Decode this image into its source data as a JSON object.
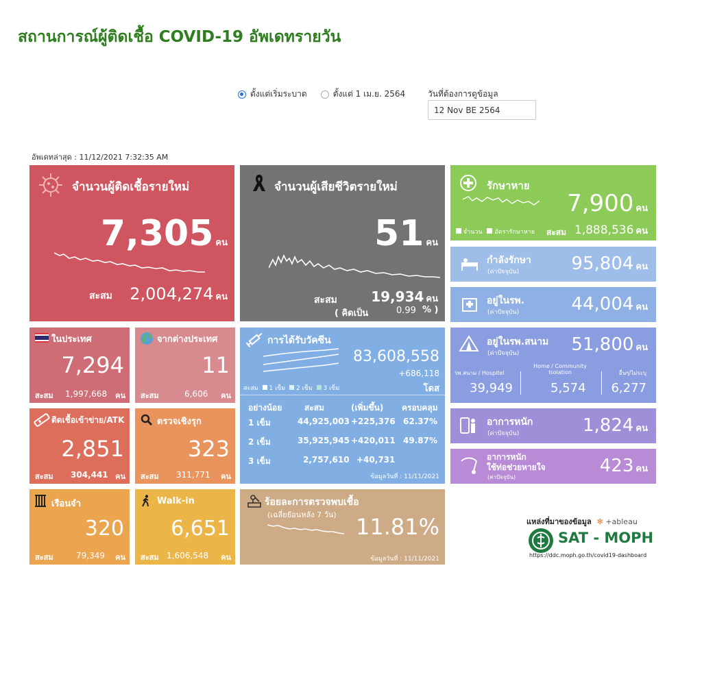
{
  "page_title": "สถานการณ์ผู้ติดเชื้อ COVID-19 อัพเดทรายวัน",
  "filters": {
    "option1": "ตั้งแต่เริ่มระบาด",
    "option2": "ตั้งแต่ 1 เม.ย. 2564",
    "date_label": "วันที่ต้องการดูข้อมูล",
    "date_value": "12 Nov BE 2564"
  },
  "updated": "อัพเดทล่าสุด : 11/12/2021 7:32:35 AM",
  "unit": "คน",
  "cum_label": "สะสม",
  "new_cases": {
    "title": "จำนวนผู้ติดเชื้อรายใหม่",
    "value": "7,305",
    "cum": "2,004,274"
  },
  "deaths": {
    "title": "จำนวนผู้เสียชีวิตรายใหม่",
    "value": "51",
    "cum": "19,934",
    "rate_label": "( คิดเป็น",
    "rate": "0.99",
    "rate_unit": "% )"
  },
  "recovered": {
    "title": "รักษาหาย",
    "value": "7,900",
    "legend1": "จำนวน",
    "legend2": "อัตรารักษาหาย",
    "cum": "1,888,536"
  },
  "treating": {
    "title": "กำลังรักษา",
    "sub": "(ค่าปัจจุบัน)",
    "value": "95,804"
  },
  "hospital": {
    "title": "อยู่ในรพ.",
    "sub": "(ค่าปัจจุบัน)",
    "value": "44,004"
  },
  "field_hospital": {
    "title": "อยู่ในรพ.สนาม",
    "sub": "(ค่าปัจจุบัน)",
    "value": "51,800",
    "col1_label": "รพ.สนาม / Hospitel",
    "col1": "39,949",
    "col2_label": "Home / Community Isolation",
    "col2": "5,574",
    "col3_label": "อื่นๆ/ไม่ระบุ",
    "col3": "6,277"
  },
  "severe": {
    "title": "อาการหนัก",
    "sub": "(ค่าปัจจุบัน)",
    "value": "1,824"
  },
  "ventilator": {
    "title1": "อาการหนัก",
    "title2": "ใช้ท่อช่วยหายใจ",
    "sub": "(ค่าปัจจุบัน)",
    "value": "423"
  },
  "domestic": {
    "title": "ในประเทศ",
    "value": "7,294",
    "cum": "1,997,668"
  },
  "imported": {
    "title": "จากต่างประเทศ",
    "value": "11",
    "cum": "6,606"
  },
  "atk": {
    "title": "ติดเชื้อเข้าข่าย/ATK",
    "value": "2,851",
    "cum": "304,441"
  },
  "proactive": {
    "title": "ตรวจเชิงรุก",
    "value": "323",
    "cum": "311,771"
  },
  "prison": {
    "title": "เรือนจำ",
    "value": "320",
    "cum": "79,349"
  },
  "walkin": {
    "title": "Walk-in",
    "value": "6,651",
    "cum": "1,606,548"
  },
  "vaccine": {
    "title": "การได้รับวัคซีน",
    "total": "83,608,558",
    "added": "+686,118",
    "unit": "โดส",
    "legend_prefix": "สะสม",
    "legend": [
      "1 เข็ม",
      "2 เข็ม",
      "3 เข็ม"
    ],
    "headers": [
      "อย่างน้อย",
      "สะสม",
      "(เพิ่มขึ้น)",
      "ครอบคลุม"
    ],
    "rows": [
      [
        "1 เข็ม",
        "44,925,003",
        "+225,376",
        "62.37%"
      ],
      [
        "2 เข็ม",
        "35,925,945",
        "+420,011",
        "49.87%"
      ],
      [
        "3 เข็ม",
        "2,757,610",
        "+40,731",
        ""
      ]
    ],
    "asof": "ข้อมูลวันที่ : 11/11/2021"
  },
  "positivity": {
    "title": "ร้อยละการตรวจพบเชื้อ",
    "sub": "(เฉลี่ยย้อนหลัง 7 วัน)",
    "value": "11.81%",
    "asof": "ข้อมูลวันที่ : 11/11/2021"
  },
  "source": {
    "label": "แหล่งที่มาของข้อมูล",
    "tableau": "+ableau",
    "brand": "SAT - MOPH",
    "url": "https://ddc.moph.go.th/covid19-dashboard"
  },
  "colors": {
    "new_cases": "#cf5560",
    "deaths": "#737373",
    "recovered": "#8ccb57",
    "treating": "#9fbde9",
    "hospital": "#8fb0e4",
    "field": "#8a9de0",
    "severe": "#9e8fd8",
    "vent": "#b98bd6",
    "domestic": "#cf6d76",
    "imported": "#d78b8f",
    "atk": "#de6e5c",
    "proactive": "#e9945c",
    "prison": "#eca54f",
    "walkin": "#ecb548",
    "vaccine": "#82afe3",
    "positivity": "#cdab86",
    "title": "#2e7d1f"
  }
}
